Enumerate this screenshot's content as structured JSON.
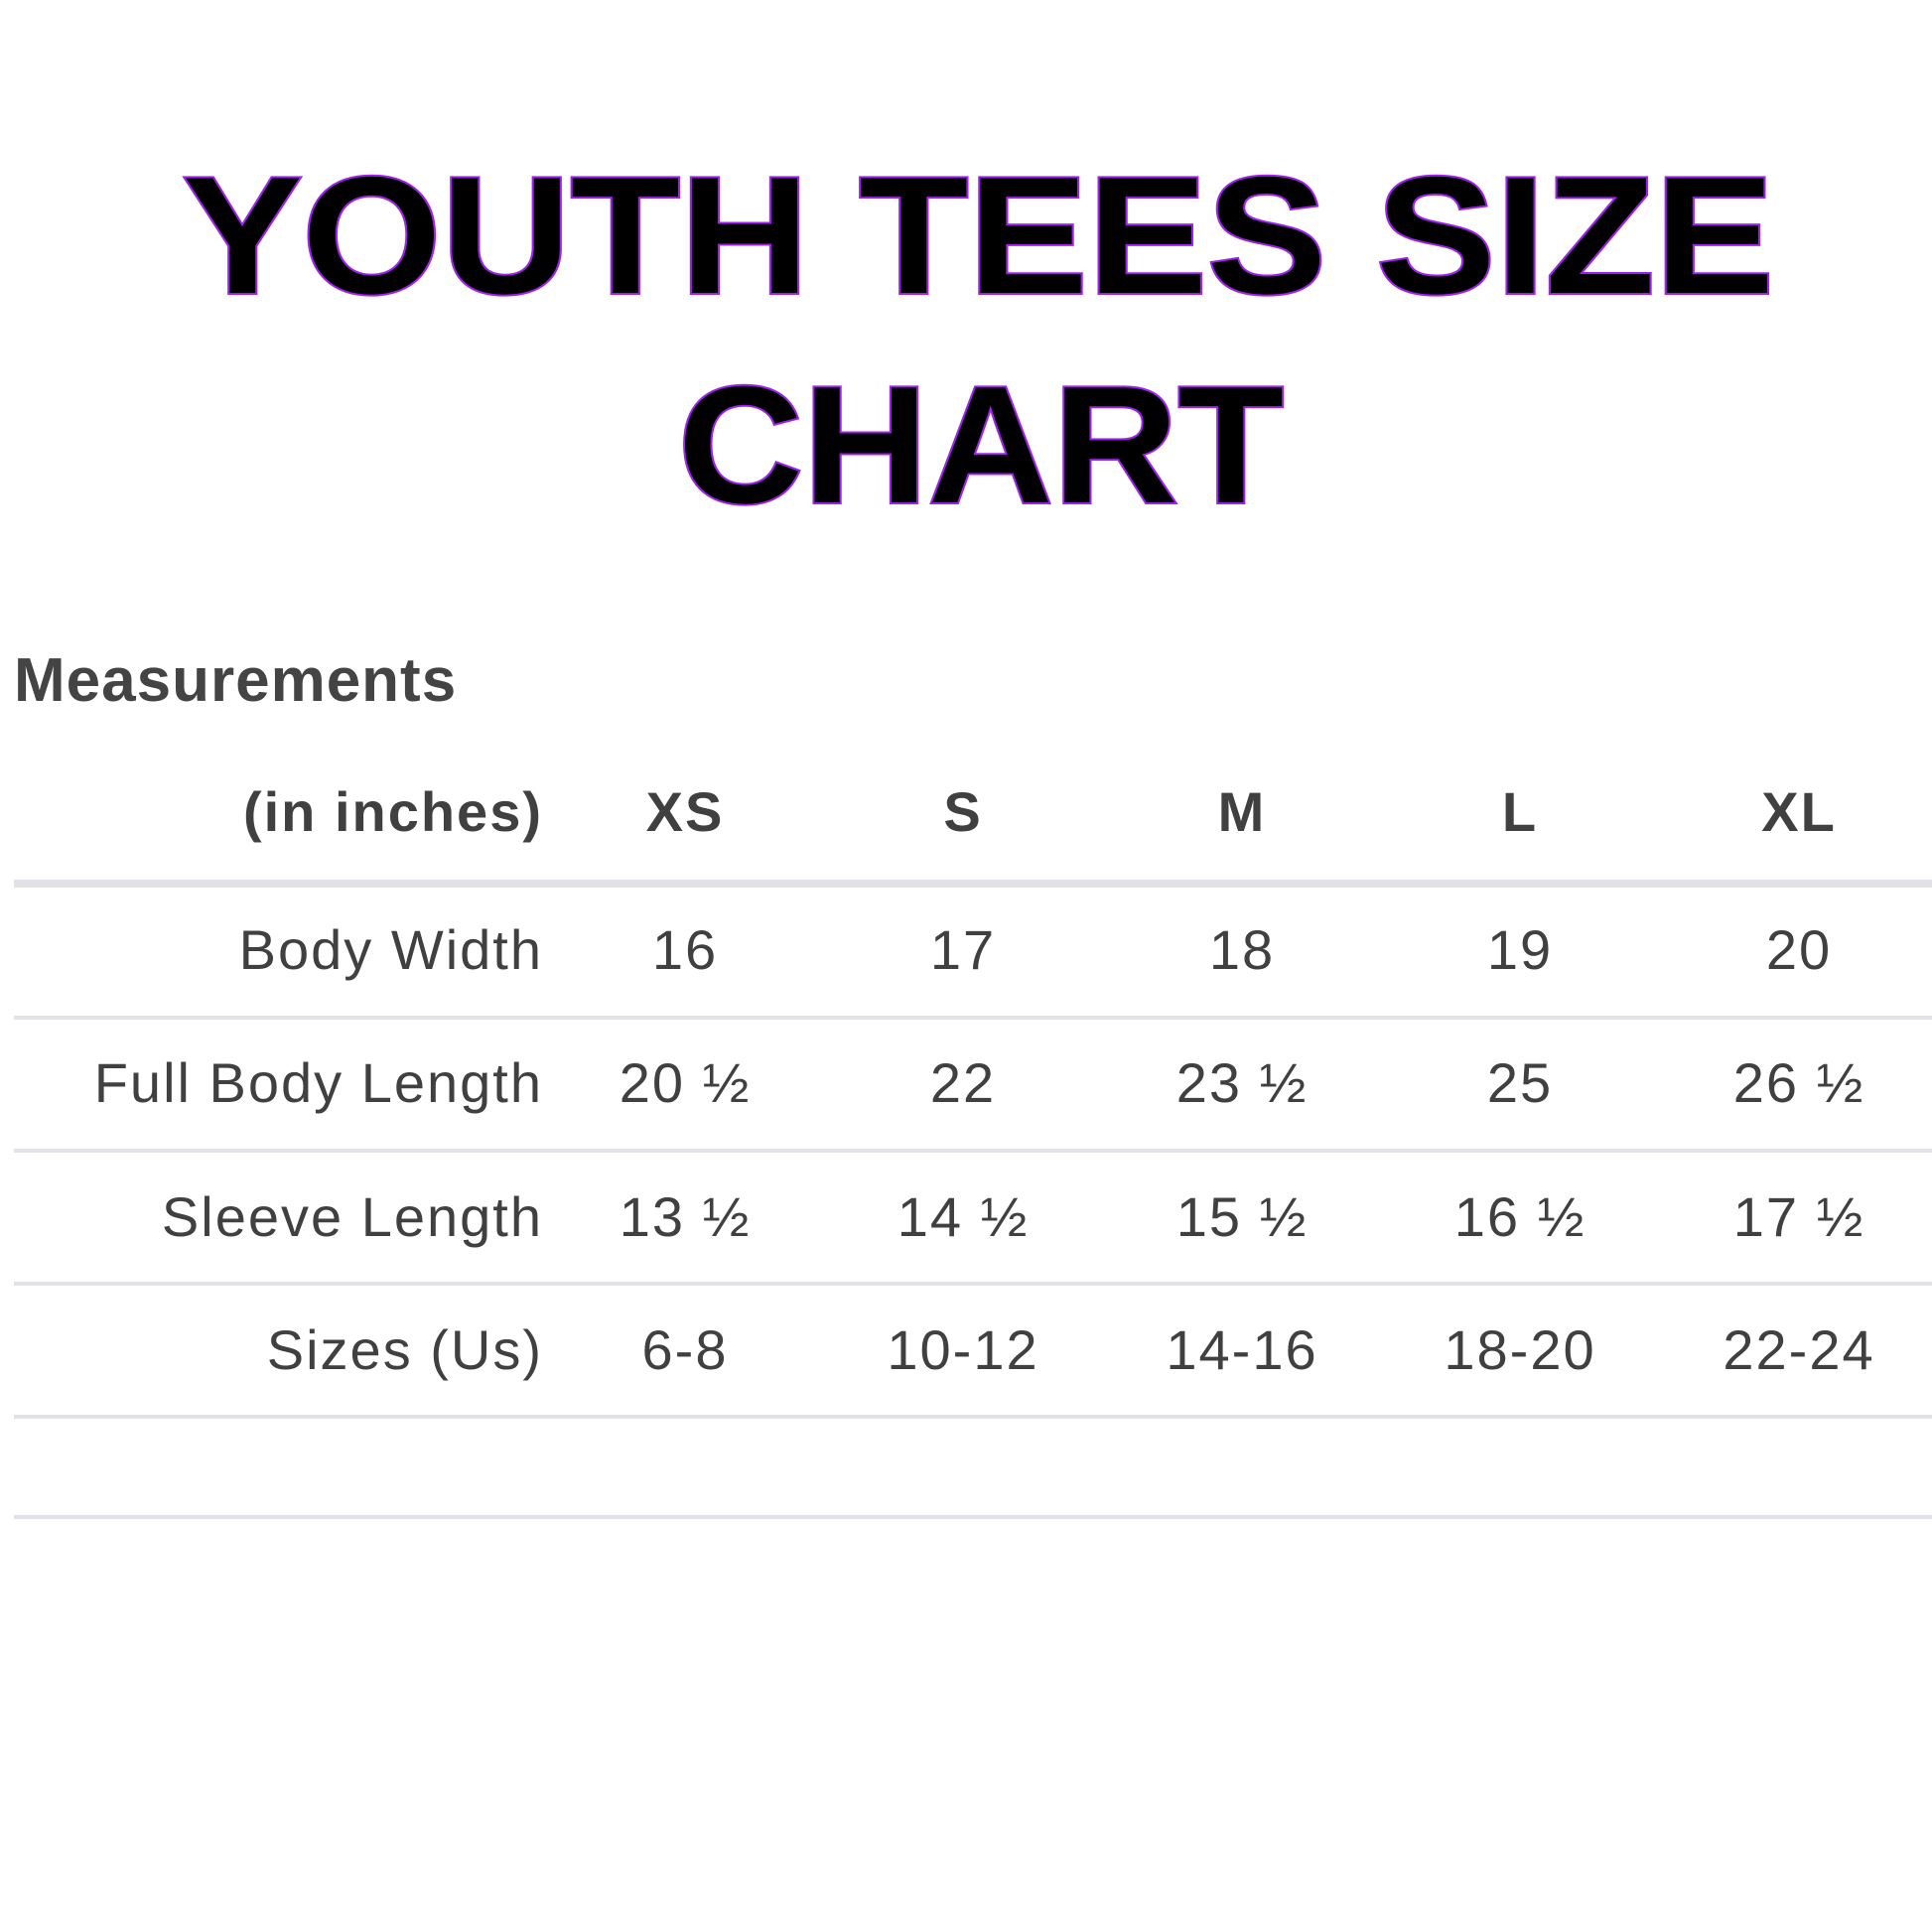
{
  "title": {
    "line1": "YOUTH TEES SIZE",
    "line2": "CHART",
    "fill_color": "#000000",
    "outline_color": "#a020f0"
  },
  "section_heading": "Measurements",
  "table": {
    "unit_label": "(in inches)",
    "columns": [
      "XS",
      "S",
      "M",
      "L",
      "XL"
    ],
    "rows": [
      {
        "label": "Body Width",
        "values": [
          "16",
          "17",
          "18",
          "19",
          "20"
        ]
      },
      {
        "label": "Full Body Length",
        "values": [
          "20 ½",
          "22",
          "23 ½",
          "25",
          "26 ½"
        ]
      },
      {
        "label": "Sleeve Length",
        "values": [
          "13 ½",
          "14 ½",
          "15 ½",
          "16 ½",
          "17 ½"
        ]
      },
      {
        "label": "Sizes (Us)",
        "values": [
          "6-8",
          "10-12",
          "14-16",
          "18-20",
          "22-24"
        ]
      }
    ]
  }
}
